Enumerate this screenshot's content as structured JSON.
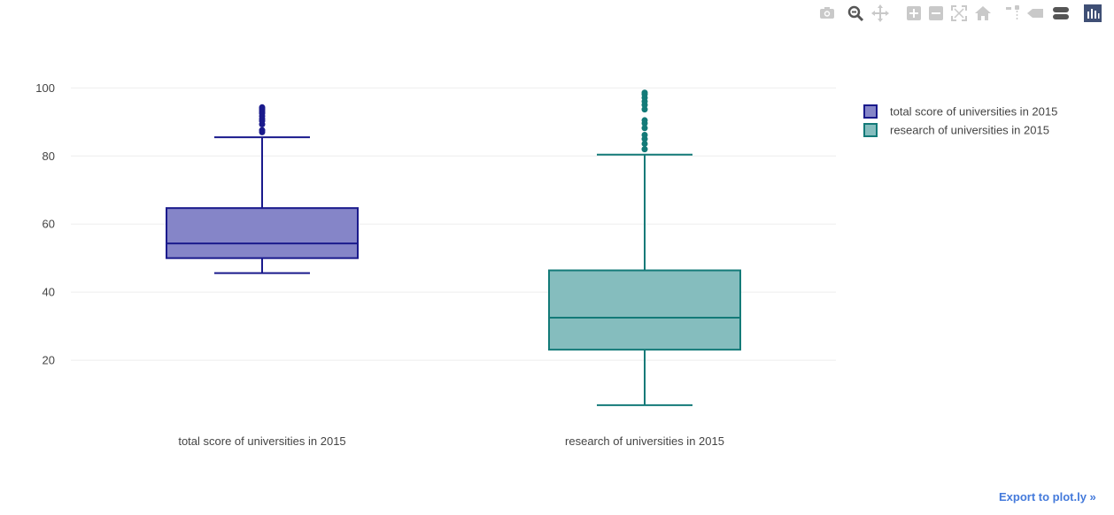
{
  "modebar": {
    "buttons": [
      {
        "name": "camera-icon",
        "color": "#c9c9c9"
      },
      {
        "name": "zoom-icon",
        "color": "#555555"
      },
      {
        "name": "pan-icon",
        "color": "#c9c9c9"
      },
      {
        "name": "zoom-in-icon",
        "color": "#c9c9c9"
      },
      {
        "name": "zoom-out-icon",
        "color": "#c9c9c9"
      },
      {
        "name": "autoscale-icon",
        "color": "#c9c9c9"
      },
      {
        "name": "reset-axes-icon",
        "color": "#c9c9c9"
      },
      {
        "name": "spike-lines-icon",
        "color": "#c9c9c9"
      },
      {
        "name": "hover-closest-icon",
        "color": "#c9c9c9"
      },
      {
        "name": "hover-compare-icon",
        "color": "#555555"
      },
      {
        "name": "plotly-logo-icon",
        "color": "#3f4f75"
      }
    ]
  },
  "export_link": "Export to plot.ly »",
  "chart_data": {
    "type": "box",
    "ylim": [
      0,
      104
    ],
    "yticks": [
      20,
      40,
      60,
      80,
      100
    ],
    "grid": true,
    "legend_position": "top-right",
    "categories": [
      "total score of universities in 2015",
      "research of universities in 2015"
    ],
    "series": [
      {
        "name": "total score of universities in 2015",
        "line_color": "#1a1a8c",
        "fill_color": "#8585c8",
        "lower_whisker": 45.6,
        "q1": 50.0,
        "median": 54.3,
        "q3": 64.7,
        "upper_whisker": 85.5,
        "outliers": [
          87.0,
          87.6,
          89.3,
          90.3,
          90.9,
          91.7,
          92.5,
          93.0,
          93.5,
          93.9,
          94.3
        ]
      },
      {
        "name": "research of universities in 2015",
        "line_color": "#137a78",
        "fill_color": "#85bdbe",
        "lower_whisker": 6.8,
        "q1": 23.1,
        "median": 32.5,
        "q3": 46.4,
        "upper_whisker": 80.4,
        "outliers": [
          82.0,
          83.6,
          85.0,
          86.2,
          88.2,
          89.6,
          90.5,
          93.7,
          95.0,
          96.0,
          97.1,
          98.1,
          98.6
        ]
      }
    ]
  }
}
